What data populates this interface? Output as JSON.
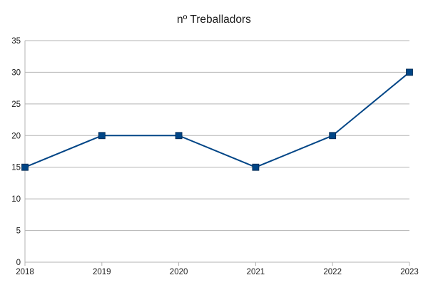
{
  "chart_data": {
    "type": "line",
    "title": "nº  Treballadors",
    "xlabel": "",
    "ylabel": "",
    "categories": [
      "2018",
      "2019",
      "2020",
      "2021",
      "2022",
      "2023"
    ],
    "series": [
      {
        "values": [
          15,
          20,
          20,
          15,
          20,
          30
        ]
      }
    ],
    "ylim": [
      0,
      35
    ],
    "yticks": [
      0,
      5,
      10,
      15,
      20,
      25,
      30,
      35
    ],
    "grid": true,
    "legend": "none",
    "colors": {
      "line": "#004586",
      "marker": "#004586"
    }
  }
}
